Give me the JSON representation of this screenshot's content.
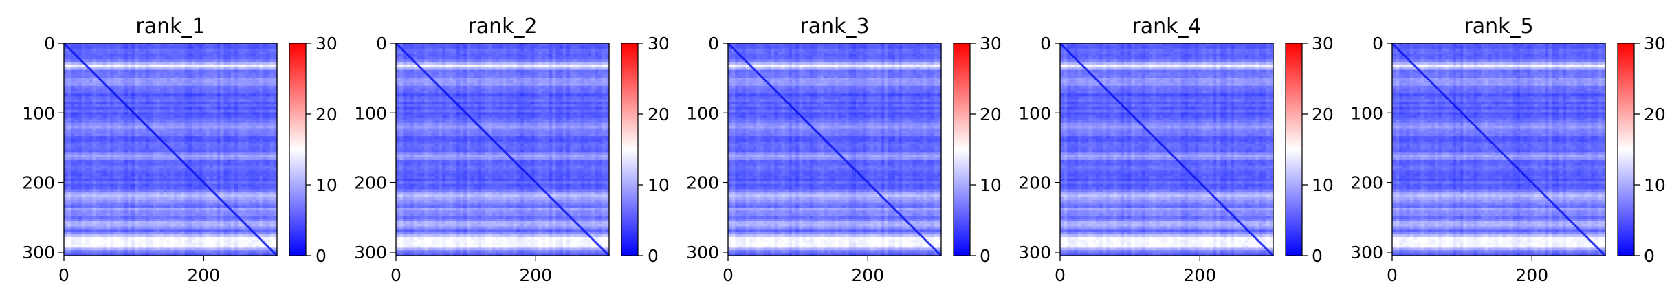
{
  "chart_data": [
    {
      "type": "heatmap",
      "title": "rank_1",
      "x_ticks": [
        "0",
        "200"
      ],
      "x_tick_values": [
        0,
        200
      ],
      "y_ticks": [
        "0",
        "100",
        "200",
        "300"
      ],
      "y_tick_values": [
        0,
        100,
        200,
        300
      ],
      "xlim": [
        0,
        305
      ],
      "ylim": [
        305,
        0
      ],
      "colorbar": {
        "ticks": [
          "0",
          "10",
          "20",
          "30"
        ],
        "tick_values": [
          0,
          10,
          20,
          30
        ],
        "range": [
          0,
          30
        ],
        "colors": [
          "#0000ff",
          "#ffffff",
          "#ff0000"
        ]
      }
    },
    {
      "type": "heatmap",
      "title": "rank_2",
      "x_ticks": [
        "0",
        "200"
      ],
      "x_tick_values": [
        0,
        200
      ],
      "y_ticks": [
        "0",
        "100",
        "200",
        "300"
      ],
      "y_tick_values": [
        0,
        100,
        200,
        300
      ],
      "xlim": [
        0,
        305
      ],
      "ylim": [
        305,
        0
      ],
      "colorbar": {
        "ticks": [
          "0",
          "10",
          "20",
          "30"
        ],
        "tick_values": [
          0,
          10,
          20,
          30
        ],
        "range": [
          0,
          30
        ],
        "colors": [
          "#0000ff",
          "#ffffff",
          "#ff0000"
        ]
      }
    },
    {
      "type": "heatmap",
      "title": "rank_3",
      "x_ticks": [
        "0",
        "200"
      ],
      "x_tick_values": [
        0,
        200
      ],
      "y_ticks": [
        "0",
        "100",
        "200",
        "300"
      ],
      "y_tick_values": [
        0,
        100,
        200,
        300
      ],
      "xlim": [
        0,
        305
      ],
      "ylim": [
        305,
        0
      ],
      "colorbar": {
        "ticks": [
          "0",
          "10",
          "20",
          "30"
        ],
        "tick_values": [
          0,
          10,
          20,
          30
        ],
        "range": [
          0,
          30
        ],
        "colors": [
          "#0000ff",
          "#ffffff",
          "#ff0000"
        ]
      }
    },
    {
      "type": "heatmap",
      "title": "rank_4",
      "x_ticks": [
        "0",
        "200"
      ],
      "x_tick_values": [
        0,
        200
      ],
      "y_ticks": [
        "0",
        "100",
        "200",
        "300"
      ],
      "y_tick_values": [
        0,
        100,
        200,
        300
      ],
      "xlim": [
        0,
        305
      ],
      "ylim": [
        305,
        0
      ],
      "colorbar": {
        "ticks": [
          "0",
          "10",
          "20",
          "30"
        ],
        "tick_values": [
          0,
          10,
          20,
          30
        ],
        "range": [
          0,
          30
        ],
        "colors": [
          "#0000ff",
          "#ffffff",
          "#ff0000"
        ]
      }
    },
    {
      "type": "heatmap",
      "title": "rank_5",
      "x_ticks": [
        "0",
        "200"
      ],
      "x_tick_values": [
        0,
        200
      ],
      "y_ticks": [
        "0",
        "100",
        "200",
        "300"
      ],
      "y_tick_values": [
        0,
        100,
        200,
        300
      ],
      "xlim": [
        0,
        305
      ],
      "ylim": [
        305,
        0
      ],
      "colorbar": {
        "ticks": [
          "0",
          "10",
          "20",
          "30"
        ],
        "tick_values": [
          0,
          10,
          20,
          30
        ],
        "range": [
          0,
          30
        ],
        "colors": [
          "#0000ff",
          "#ffffff",
          "#ff0000"
        ]
      }
    }
  ]
}
